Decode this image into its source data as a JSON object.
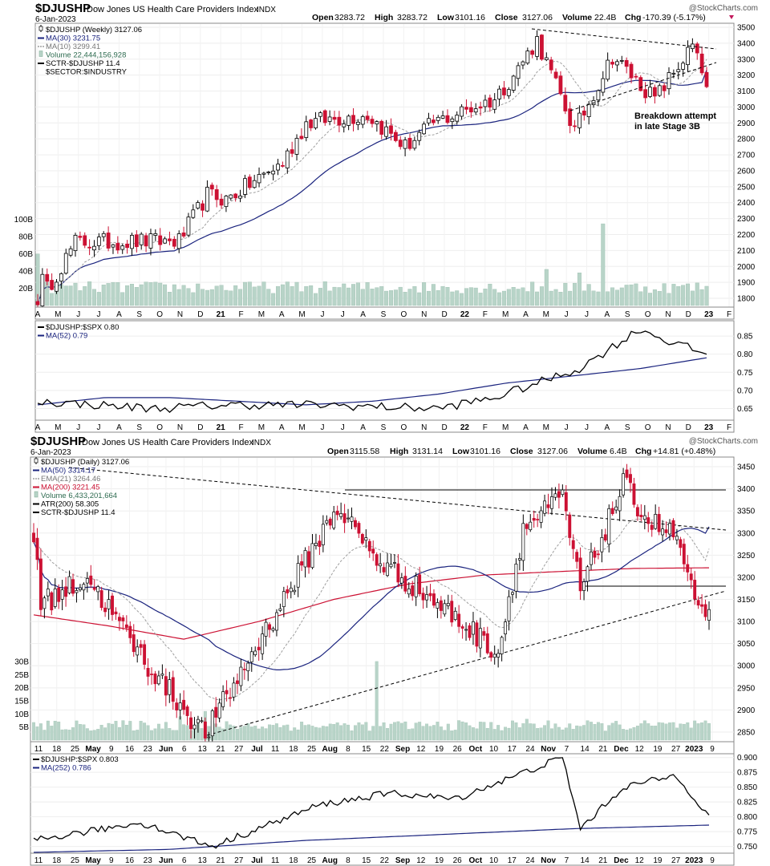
{
  "watermark": "@StockCharts.com",
  "colors": {
    "up": "#000000",
    "down": "#cc1133",
    "ma_long": "#1a237e",
    "ma_short": "#9e9e9e",
    "ma200": "#cc1133",
    "volume": "#b8d4c8",
    "neg": "#c2185b"
  },
  "weekly": {
    "symbol": "$DJUSHP",
    "name": "Dow Jones US Health Care Providers Index",
    "exchange": "INDX",
    "date": "6-Jan-2023",
    "quote": {
      "open_l": "Open",
      "open": "3283.72",
      "high_l": "High",
      "high": "3283.72",
      "low_l": "Low",
      "low": "3101.16",
      "close_l": "Close",
      "close": "3127.06",
      "vol_l": "Volume",
      "vol": "22.4B",
      "chg_l": "Chg",
      "chg": "-170.39 (-5.17%)"
    },
    "legend": [
      {
        "text": "$DJUSHP (Weekly) 3127.06",
        "kind": "candle"
      },
      {
        "text": "MA(30) 3231.75",
        "kind": "navy"
      },
      {
        "text": "MA(10) 3299.41",
        "kind": "dash"
      },
      {
        "text": "Volume 22,444,156,928",
        "kind": "vol"
      },
      {
        "text": "SCTR-$DJUSHP 11.4",
        "kind": "black"
      },
      {
        "text": "$SECTOR:$INDUSTRY",
        "kind": "none"
      }
    ],
    "annotation": [
      "Breakdown attempt",
      "in late Stage 3B"
    ],
    "y_ticks": [
      "3500",
      "3400",
      "3300",
      "3200",
      "3100",
      "3000",
      "2900",
      "2800",
      "2700",
      "2600",
      "2500",
      "2400",
      "2300",
      "2200",
      "2100",
      "2000",
      "1900",
      "1800"
    ],
    "vol_ticks": [
      "100B",
      "80B",
      "60B",
      "40B",
      "20B"
    ],
    "x_labels": [
      "A",
      "M",
      "J",
      "J",
      "A",
      "S",
      "O",
      "N",
      "D",
      "21",
      "F",
      "M",
      "A",
      "M",
      "J",
      "J",
      "A",
      "S",
      "O",
      "N",
      "D",
      "22",
      "F",
      "M",
      "A",
      "M",
      "J",
      "J",
      "A",
      "S",
      "O",
      "N",
      "D",
      "23",
      "F"
    ]
  },
  "weekly_ratio": {
    "legend": [
      {
        "text": "$DJUSHP:$SPX 0.80",
        "kind": "black"
      },
      {
        "text": "MA(52) 0.79",
        "kind": "navy"
      }
    ],
    "y_ticks": [
      "0.85",
      "0.80",
      "0.75",
      "0.70",
      "0.65"
    ]
  },
  "daily": {
    "symbol": "$DJUSHP",
    "name": "Dow Jones US Health Care Providers Index",
    "exchange": "INDX",
    "date": "6-Jan-2023",
    "quote": {
      "open_l": "Open",
      "open": "3115.58",
      "high_l": "High",
      "high": "3131.14",
      "low_l": "Low",
      "low": "3101.16",
      "close_l": "Close",
      "close": "3127.06",
      "vol_l": "Volume",
      "vol": "6.4B",
      "chg_l": "Chg",
      "chg": "+14.81 (+0.48%)"
    },
    "legend": [
      {
        "text": "$DJUSHP (Daily) 3127.06",
        "kind": "candle"
      },
      {
        "text": "MA(50) 3314.17",
        "kind": "navy"
      },
      {
        "text": "EMA(21) 3264.46",
        "kind": "dash"
      },
      {
        "text": "MA(200) 3221.45",
        "kind": "red"
      },
      {
        "text": "Volume 6,433,201,664",
        "kind": "vol"
      },
      {
        "text": "ATR(200) 58.305",
        "kind": "black"
      },
      {
        "text": "SCTR-$DJUSHP 11.4",
        "kind": "black"
      }
    ],
    "y_ticks": [
      "3450",
      "3400",
      "3350",
      "3300",
      "3250",
      "3200",
      "3150",
      "3100",
      "3050",
      "3000",
      "2950",
      "2900",
      "2850"
    ],
    "vol_ticks": [
      "30B",
      "25B",
      "20B",
      "15B",
      "10B",
      "5B"
    ],
    "x_labels": [
      "11",
      "18",
      "25",
      "May",
      "9",
      "16",
      "23",
      "Jun",
      "6",
      "13",
      "21",
      "27",
      "Jul",
      "11",
      "18",
      "25",
      "Aug",
      "8",
      "15",
      "22",
      "Sep",
      "12",
      "19",
      "26",
      "Oct",
      "10",
      "17",
      "24",
      "Nov",
      "7",
      "14",
      "21",
      "Dec",
      "12",
      "19",
      "27",
      "2023",
      "9"
    ]
  },
  "daily_ratio": {
    "legend": [
      {
        "text": "$DJUSHP:$SPX 0.803",
        "kind": "black"
      },
      {
        "text": "MA(252) 0.786",
        "kind": "navy"
      }
    ],
    "y_ticks": [
      "0.900",
      "0.875",
      "0.850",
      "0.825",
      "0.800",
      "0.775",
      "0.750"
    ],
    "x_labels": [
      "11",
      "18",
      "25",
      "May",
      "9",
      "16",
      "23",
      "Jun",
      "6",
      "13",
      "21",
      "27",
      "Jul",
      "11",
      "18",
      "25",
      "Aug",
      "8",
      "15",
      "22",
      "Sep",
      "12",
      "19",
      "26",
      "Oct",
      "10",
      "17",
      "24",
      "Nov",
      "7",
      "14",
      "21",
      "Dec",
      "12",
      "19",
      "27",
      "2023",
      "9"
    ]
  },
  "chart_data": [
    {
      "type": "candlestick",
      "title": "$DJUSHP Dow Jones US Health Care Providers Index INDX (Weekly)",
      "ylim": [
        1750,
        3520
      ],
      "anchors_x": [
        "Apr-2020",
        "Jun-2020",
        "Nov-2020",
        "Dec-2020",
        "Jan-2021",
        "Apr-2021",
        "May-2021",
        "Jun-2021",
        "Aug-2021",
        "Oct-2021",
        "Nov-2021",
        "Feb-2022",
        "Mar-2022",
        "Apr-2022",
        "Jun-2022",
        "Aug-2022",
        "Oct-2022",
        "Dec-2022",
        "6-Jan-2023"
      ],
      "close_approx": [
        1760,
        2150,
        2160,
        2450,
        2420,
        2650,
        2900,
        2920,
        2950,
        2750,
        2900,
        3050,
        3200,
        3420,
        2850,
        3320,
        3050,
        3380,
        3127
      ],
      "ma30_approx_start_end": [
        2100,
        3231.75
      ],
      "ma10_end": 3299.41,
      "volume_last": 22444156928,
      "volume_ylim_B": [
        0,
        110
      ],
      "annotation": "Breakdown attempt in late Stage 3B",
      "trendlines": "converging wedge from Apr-2022 high (~3480) and Jun-2022 low (~2820) to Jan-2023"
    },
    {
      "type": "line",
      "title": "$DJUSHP:$SPX (Weekly)",
      "ylim": [
        0.62,
        0.89
      ],
      "anchors_x": [
        "Apr-2020",
        "Sep-2020",
        "Jan-2021",
        "Jun-2021",
        "Nov-2021",
        "Feb-2022",
        "Jun-2022",
        "Sep-2022",
        "Oct-2022",
        "Nov-2022",
        "Jan-2023"
      ],
      "ratio_approx": [
        0.67,
        0.65,
        0.66,
        0.66,
        0.65,
        0.68,
        0.76,
        0.82,
        0.87,
        0.84,
        0.8
      ],
      "ma52_approx": [
        0.66,
        0.68,
        0.68,
        0.67,
        0.66,
        0.67,
        0.69,
        0.72,
        0.74,
        0.76,
        0.79
      ]
    },
    {
      "type": "candlestick",
      "title": "$DJUSHP Dow Jones US Health Care Providers Index INDX (Daily)",
      "ylim": [
        2830,
        3470
      ],
      "anchors_x": [
        "Apr-11",
        "May-2",
        "May-26",
        "Jun-17",
        "Aug-10",
        "Aug-26",
        "Sep-15",
        "Oct-14",
        "Oct-24",
        "Nov-8",
        "Nov-15",
        "Dec-5",
        "Dec-15",
        "Dec-27",
        "Jan-3",
        "Jan-6"
      ],
      "close_approx": [
        3130,
        3200,
        3000,
        2845,
        3360,
        3240,
        3160,
        3030,
        3310,
        3380,
        3170,
        3410,
        3330,
        3290,
        3110,
        3127.06
      ],
      "ma50_end": 3314.17,
      "ema21_end": 3264.46,
      "ma200_end": 3221.45,
      "volume_last": 6433201664,
      "volume_ylim_B": [
        0,
        32
      ],
      "horizontal_lines": [
        3400,
        3175
      ],
      "trendlines": "descending line from Apr-2022 ~3460 to Jan-2023 ~3305; rising line from Jun-17 low ~2830 to Jan-2023 ~3155"
    },
    {
      "type": "line",
      "title": "$DJUSHP:$SPX (Daily)",
      "ylim": [
        0.74,
        0.905
      ],
      "ratio_end": 0.803,
      "ma252_end": 0.786,
      "ratio_approx_anchors": [
        0.76,
        0.79,
        0.75,
        0.82,
        0.84,
        0.83,
        0.9,
        0.78,
        0.85,
        0.87,
        0.8
      ]
    }
  ]
}
